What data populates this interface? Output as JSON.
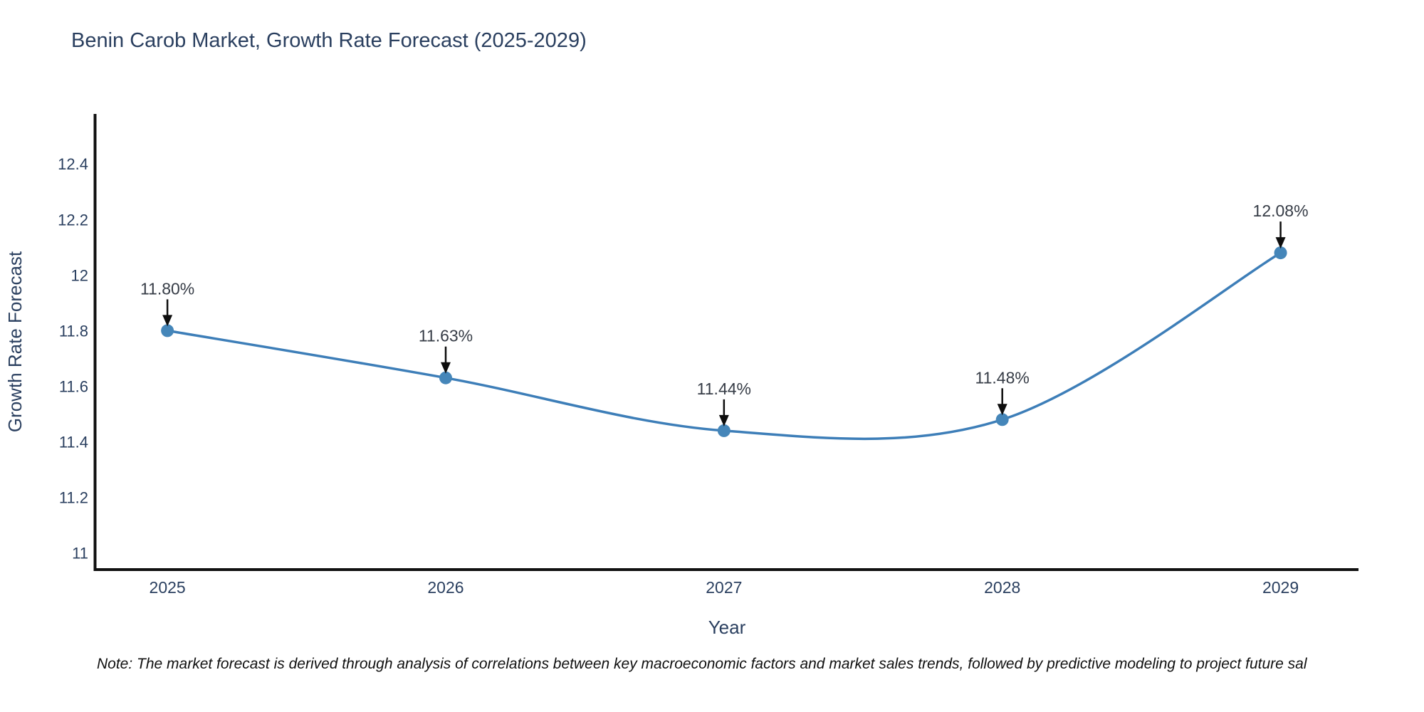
{
  "title": "Benin Carob Market, Growth Rate Forecast (2025-2029)",
  "note": "Note: The market forecast is derived through analysis of correlations between key macroeconomic factors and market sales trends, followed by predictive modeling to project future sal",
  "chart_data": {
    "type": "line",
    "title": "Benin Carob Market, Growth Rate Forecast (2025-2029)",
    "xlabel": "Year",
    "ylabel": "Growth Rate Forecast",
    "x": [
      2025,
      2026,
      2027,
      2028,
      2029
    ],
    "series": [
      {
        "name": "Growth Rate Forecast",
        "values": [
          11.8,
          11.63,
          11.44,
          11.48,
          12.08
        ]
      }
    ],
    "point_labels": [
      "11.80%",
      "11.63%",
      "11.44%",
      "11.48%",
      "12.08%"
    ],
    "xtick_labels": [
      "2025",
      "2026",
      "2027",
      "2028",
      "2029"
    ],
    "ytick_values": [
      11,
      11.2,
      11.4,
      11.6,
      11.8,
      12,
      12.2,
      12.4
    ],
    "ytick_labels": [
      "11",
      "11.2",
      "11.4",
      "11.6",
      "11.8",
      "12",
      "12.2",
      "12.4"
    ],
    "xlim": [
      2024.74,
      2029.28
    ],
    "ylim": [
      10.94,
      12.58
    ],
    "grid": false,
    "legend": "none",
    "smooth": true,
    "colors": {
      "line": "#3d7eb8",
      "marker": "#4586b9",
      "axis_line": "#111111",
      "axis_text": "#2a3f5f",
      "annotation_text": "#363c46",
      "arrow": "#0d0d0d"
    }
  }
}
